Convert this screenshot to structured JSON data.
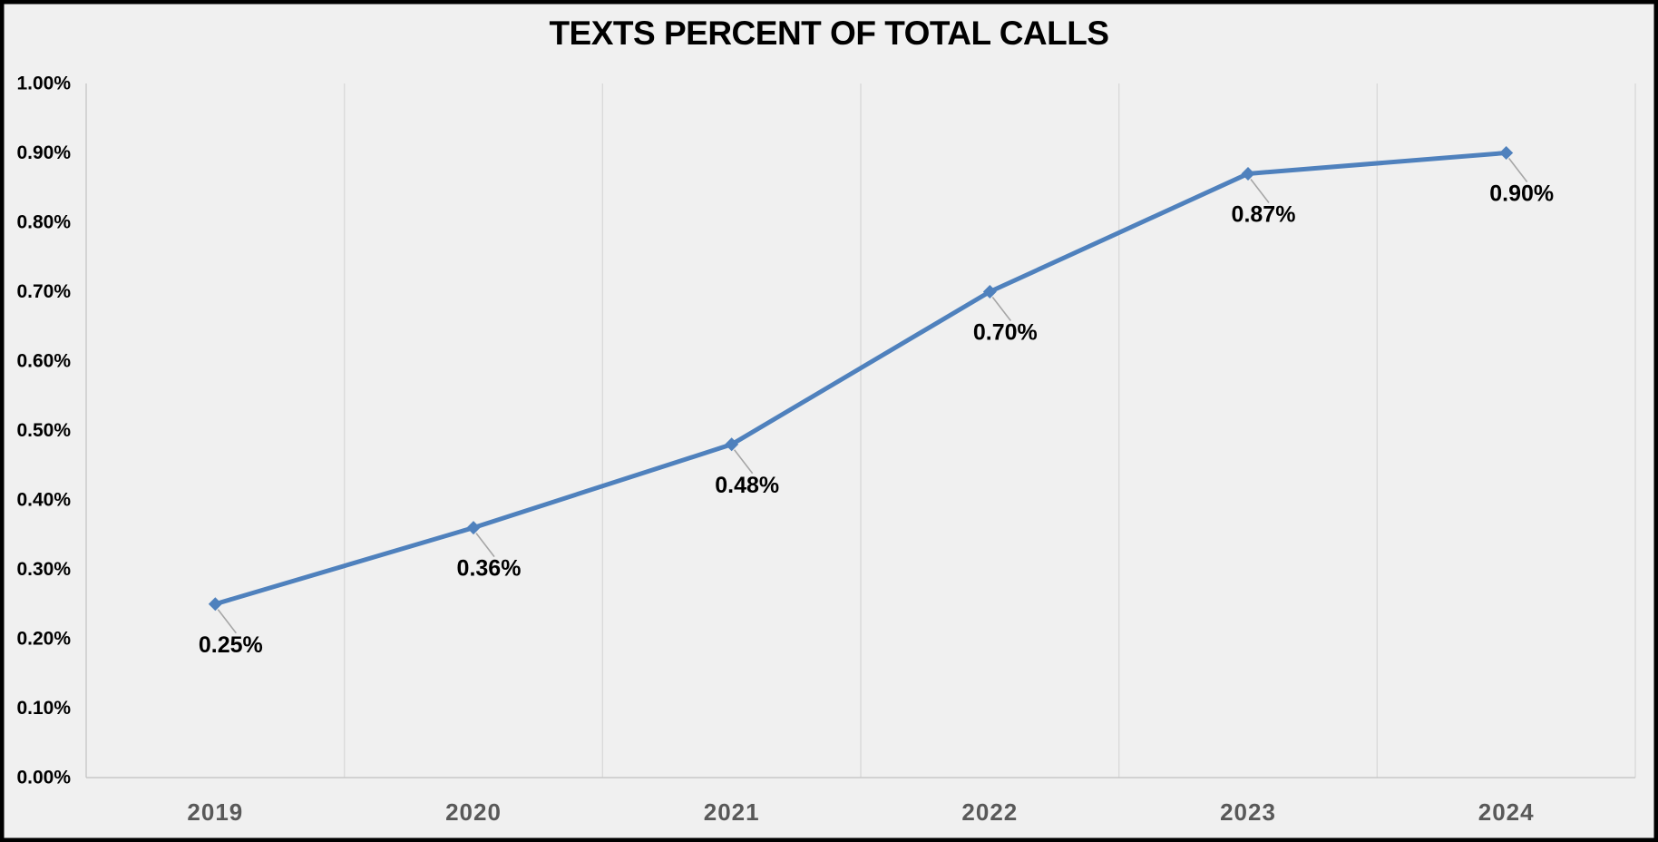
{
  "chart_data": {
    "type": "line",
    "title": "TEXTS PERCENT OF TOTAL CALLS",
    "categories": [
      "2019",
      "2020",
      "2021",
      "2022",
      "2023",
      "2024"
    ],
    "values": [
      0.25,
      0.36,
      0.48,
      0.7,
      0.87,
      0.9
    ],
    "data_labels": [
      "0.25%",
      "0.36%",
      "0.48%",
      "0.70%",
      "0.87%",
      "0.90%"
    ],
    "y_tick_labels": [
      "0.00%",
      "0.10%",
      "0.20%",
      "0.30%",
      "0.40%",
      "0.50%",
      "0.60%",
      "0.70%",
      "0.80%",
      "0.90%",
      "1.00%"
    ],
    "ylim": [
      0,
      1
    ],
    "xlabel": "",
    "ylabel": "",
    "legend": "none",
    "grid": "vertical-only",
    "marker_shape": "diamond",
    "colors": {
      "line": "#4F81BD",
      "marker": "#4F81BD",
      "data_label": "#000000",
      "leader_line": "#A6A6A6",
      "gridline": "#DADADA",
      "axis_line": "#C8C8C8",
      "background": "#F0F0F0",
      "border": "#000000",
      "x_tick_label": "#595959",
      "y_tick_label": "#000000",
      "title": "#000000"
    }
  }
}
